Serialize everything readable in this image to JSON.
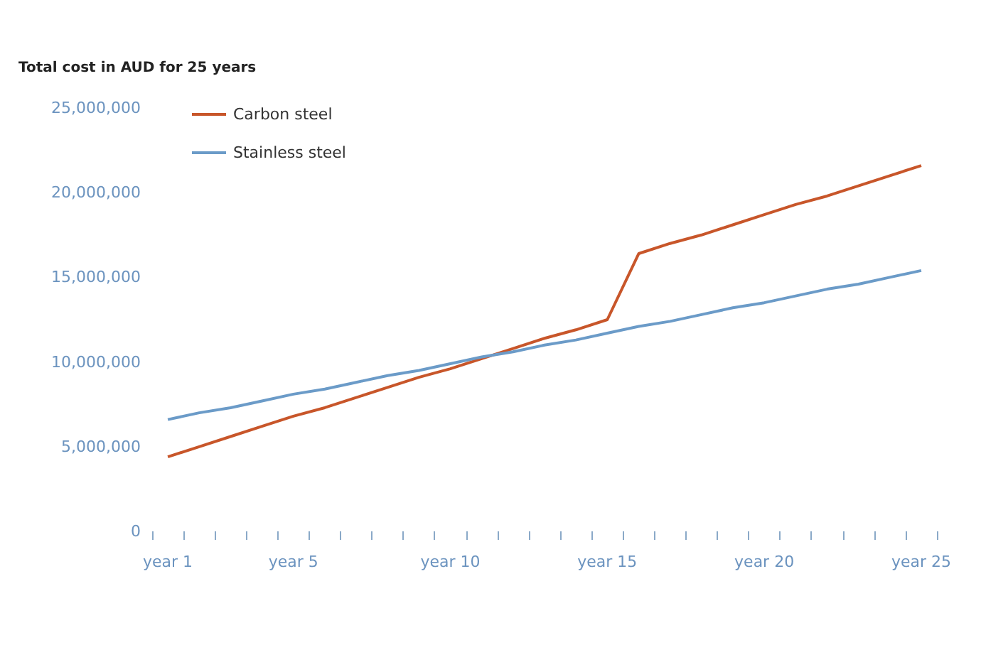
{
  "chart_data": {
    "type": "line",
    "ylabel": "Total cost in AUD for 25 years",
    "categories": [
      "year 1",
      null,
      null,
      null,
      "year 5",
      null,
      null,
      null,
      null,
      "year 10",
      null,
      null,
      null,
      null,
      "year 15",
      null,
      null,
      null,
      null,
      "year 20",
      null,
      null,
      null,
      null,
      "year 25"
    ],
    "series": [
      {
        "name": "Carbon steel",
        "color": "#c8562a",
        "values": [
          4400000,
          5000000,
          5600000,
          6200000,
          6800000,
          7300000,
          7900000,
          8500000,
          9100000,
          9600000,
          10200000,
          10800000,
          11400000,
          11900000,
          12500000,
          16400000,
          17000000,
          17500000,
          18100000,
          18700000,
          19300000,
          19800000,
          20400000,
          21000000,
          21600000
        ]
      },
      {
        "name": "Stainless steel",
        "color": "#6b9bc8",
        "values": [
          6600000,
          7000000,
          7300000,
          7700000,
          8100000,
          8400000,
          8800000,
          9200000,
          9500000,
          9900000,
          10300000,
          10600000,
          11000000,
          11300000,
          11700000,
          12100000,
          12400000,
          12800000,
          13200000,
          13500000,
          13900000,
          14300000,
          14600000,
          15000000,
          15400000
        ]
      }
    ],
    "ylim": [
      0,
      25000000
    ],
    "yticks": [
      0,
      {
        "value": 5000000,
        "label": "5,000,000"
      },
      {
        "value": 10000000,
        "label": "10,000,000"
      },
      {
        "value": 15000000,
        "label": "15,000,000"
      },
      {
        "value": 20000000,
        "label": "20,000,000"
      },
      {
        "value": 25000000,
        "label": "25,000,000"
      }
    ],
    "legend": "top left"
  }
}
